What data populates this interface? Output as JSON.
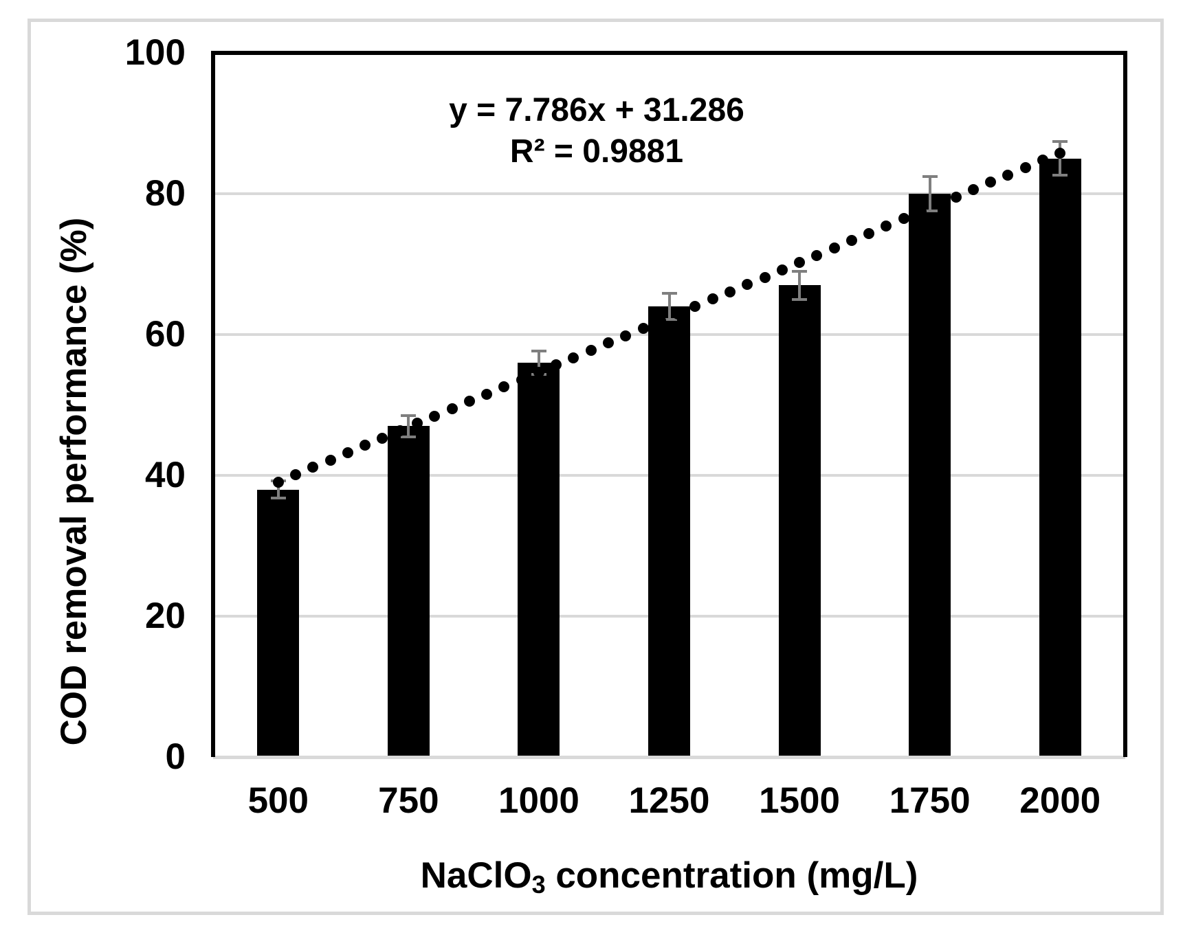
{
  "chart_data": {
    "type": "bar",
    "categories": [
      "500",
      "750",
      "1000",
      "1250",
      "1500",
      "1750",
      "2000"
    ],
    "values": [
      38,
      47,
      56,
      64,
      67,
      80,
      85
    ],
    "error_bars": [
      1.2,
      1.5,
      1.7,
      1.9,
      2.0,
      2.4,
      2.4
    ],
    "xlabel": {
      "base": "NaClO",
      "sub": "3",
      "rest": " concentration (mg/L)"
    },
    "ylabel": "COD removal performance (%)",
    "ylim": [
      0,
      100
    ],
    "yticks": [
      0,
      20,
      40,
      60,
      80,
      100
    ],
    "grid": true,
    "legend": "none",
    "trendline": {
      "type": "linear",
      "slope": 7.786,
      "intercept": 31.286,
      "equation_label": "y = 7.786x + 31.286",
      "r2_label": "R² = 0.9881",
      "style": "dotted"
    },
    "colors": {
      "bar": "#000000",
      "trendline_dot": "#000000",
      "error_bar": "#7f7f7f",
      "gridline": "#d9d9d9",
      "axis_border": "#000000",
      "baseline": "#d9d9d9",
      "frame": "#d9d9d9",
      "background": "#ffffff",
      "text": "#000000"
    }
  }
}
